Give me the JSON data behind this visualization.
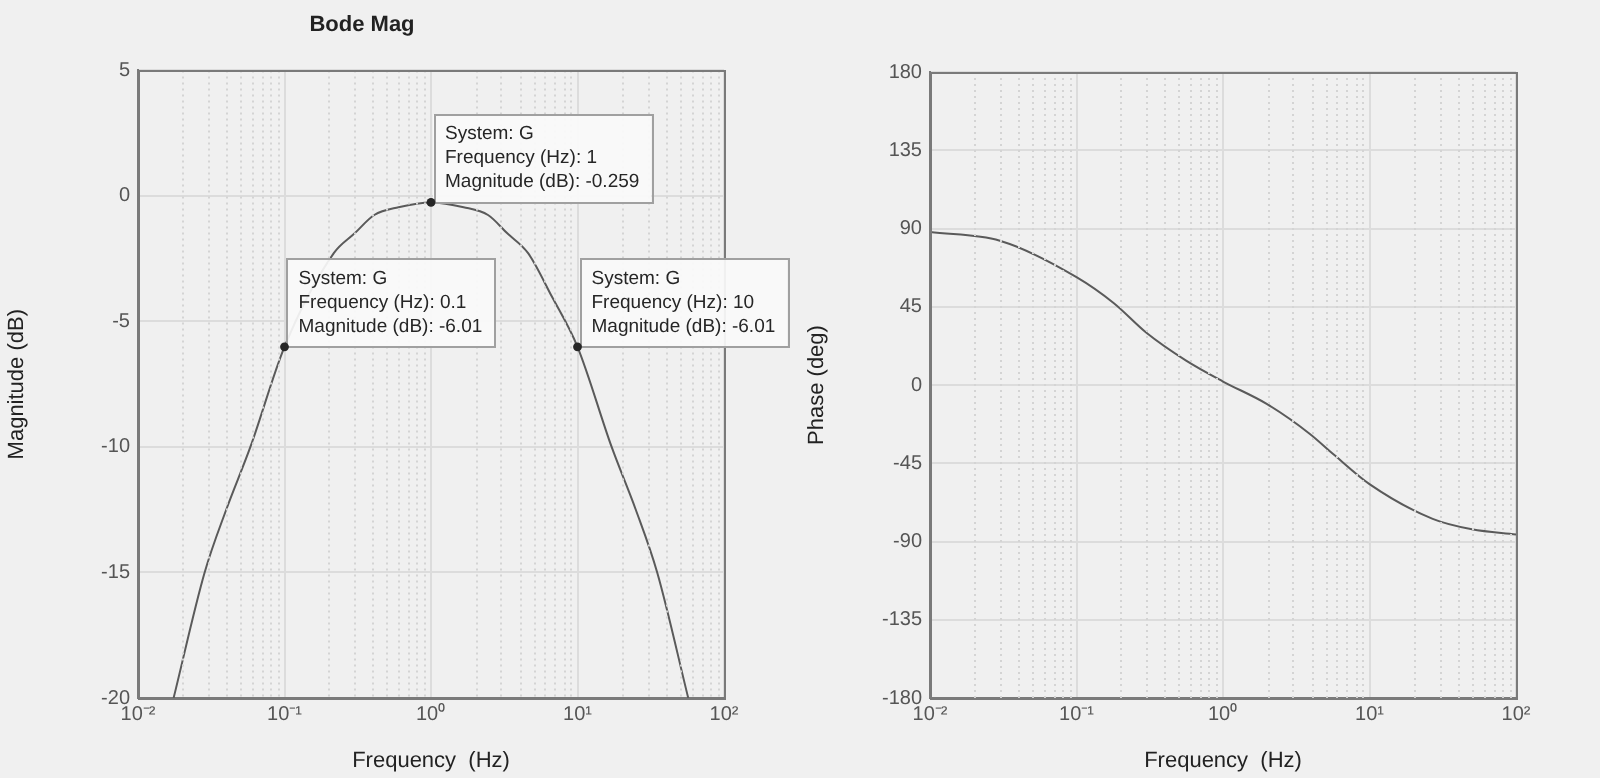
{
  "chart_data": [
    {
      "type": "line",
      "title": "Bode Mag",
      "xlabel": "Frequency  (Hz)",
      "ylabel": "Magnitude (dB)",
      "series": [
        {
          "color": "#5a5a5a",
          "x": [
            0.0175,
            0.0285,
            0.04,
            0.0585,
            0.1,
            0.217,
            0.3,
            0.41,
            0.6,
            1,
            1.67,
            2.45,
            3.33,
            4.6,
            6.67,
            10,
            17.1,
            25,
            35,
            57
          ],
          "values": [
            -20,
            -15,
            -12.5,
            -10,
            -6.01,
            -2.28,
            -1.5,
            -0.76,
            -0.45,
            -0.259,
            -0.45,
            -0.76,
            -1.5,
            -2.28,
            -4,
            -6.01,
            -10,
            -12.5,
            -15,
            -20
          ]
        }
      ],
      "xlim": [
        0.01,
        100
      ],
      "xticks": [
        {
          "value": 0.01,
          "label": "10⁻²"
        },
        {
          "value": 0.1,
          "label": "10⁻¹"
        },
        {
          "value": 1,
          "label": "10⁰"
        },
        {
          "value": 10,
          "label": "10¹"
        },
        {
          "value": 100,
          "label": "10²"
        }
      ],
      "ylim": [
        -20,
        5
      ],
      "yticks": [
        -20,
        -15,
        -10,
        -5,
        0,
        5
      ],
      "log": "x",
      "grid": true,
      "marker": "none",
      "annotations": [
        {
          "text": "System: G\nFrequency (Hz): 0.1\nMagnitude (dB): -6.01",
          "x": 0.1,
          "y": -6.01
        },
        {
          "text": "System: G\nFrequency (Hz): 1\nMagnitude (dB): -0.259",
          "x": 1,
          "y": -0.259
        },
        {
          "text": "System: G\nFrequency (Hz): 10\nMagnitude (dB): -6.01",
          "x": 10,
          "y": -6.01
        }
      ]
    },
    {
      "type": "line",
      "xlabel": "Frequency  (Hz)",
      "ylabel": "Phase (deg)",
      "series": [
        {
          "color": "#5a5a5a",
          "x": [
            0.01,
            0.03,
            0.1,
            0.18,
            0.3,
            0.56,
            1,
            2,
            3.9,
            5.7,
            10,
            27,
            50,
            100
          ],
          "values": [
            88,
            83,
            62,
            47,
            30,
            14,
            2,
            -11,
            -28,
            -40,
            -57,
            -77,
            -83,
            -86
          ]
        }
      ],
      "xlim": [
        0.01,
        100
      ],
      "xticks": [
        {
          "value": 0.01,
          "label": "10⁻²"
        },
        {
          "value": 0.1,
          "label": "10⁻¹"
        },
        {
          "value": 1,
          "label": "10⁰"
        },
        {
          "value": 10,
          "label": "10¹"
        },
        {
          "value": 100,
          "label": "10²"
        }
      ],
      "ylim": [
        -180,
        180
      ],
      "yticks": [
        -180,
        -135,
        -90,
        -45,
        0,
        45,
        90,
        135,
        180
      ],
      "log": "x",
      "grid": true,
      "marker": "none"
    }
  ]
}
